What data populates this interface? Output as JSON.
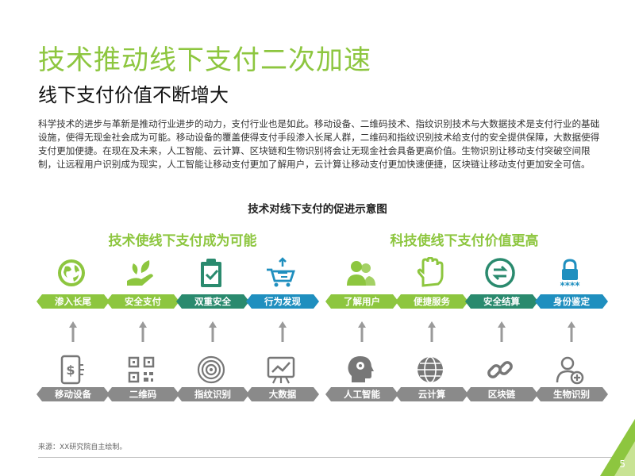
{
  "title": "技术推动线下支付二次加速",
  "subtitle": "线下支付价值不断增大",
  "body_text": "科学技术的进步与革新是推动行业进步的动力，支付行业也是如此。移动设备、二维码技术、指纹识别技术与大数据技术是支付行业的基础设施，使得无现金社会成为可能。移动设备的覆盖使得支付手段渗入长尾人群，二维码和指纹识别技术给支付的安全提供保障，大数据使得支付更加便捷。在现在及未来，人工智能、云计算、区块链和生物识别将会让无现金社会具备更高价值。生物识别让移动支付突破空间限制，让远程用户识别成为现实，人工智能让移动支付更加了解用户，云计算让移动支付更加快速便捷，区块链让移动支付更加安全可信。",
  "diagram_title": "技术对线下支付的促进示意图",
  "left_group": {
    "title": "技术使线下支付成为可能",
    "items": [
      {
        "top_label": "渗入长尾",
        "top_icon": "globe-icon",
        "bottom_label": "移动设备",
        "bottom_icon": "mobile-payment-icon",
        "color": "#8dc63f"
      },
      {
        "top_label": "安全支付",
        "top_icon": "hand-leaf-icon",
        "bottom_label": "二维码",
        "bottom_icon": "qr-code-icon",
        "color": "#8dc63f"
      },
      {
        "top_label": "双重安全",
        "top_icon": "clipboard-check-icon",
        "bottom_label": "指纹识别",
        "bottom_icon": "fingerprint-icon",
        "color": "#2a8a6e"
      },
      {
        "top_label": "行为发现",
        "top_icon": "cart-arrows-icon",
        "bottom_label": "大数据",
        "bottom_icon": "chart-board-icon",
        "color": "#1f8fbf"
      }
    ]
  },
  "right_group": {
    "title": "科技使线下支付价值更高",
    "items": [
      {
        "top_label": "了解用户",
        "top_icon": "users-icon",
        "bottom_label": "人工智能",
        "bottom_icon": "ai-head-icon",
        "color": "#8dc63f"
      },
      {
        "top_label": "便捷服务",
        "top_icon": "glove-icon",
        "bottom_label": "云计算",
        "bottom_icon": "globe-network-icon",
        "color": "#8dc63f"
      },
      {
        "top_label": "安全结算",
        "top_icon": "exchange-icon",
        "bottom_label": "区块链",
        "bottom_icon": "chain-link-icon",
        "color": "#2a8a6e"
      },
      {
        "top_label": "身份鉴定",
        "top_icon": "lock-password-icon",
        "bottom_label": "生物识别",
        "bottom_icon": "user-add-icon",
        "color": "#1f8fbf"
      }
    ]
  },
  "source": "来源：XX研究院自主绘制。",
  "page_number": "5",
  "colors": {
    "accent": "#8dc63f",
    "dark_green": "#2a8a6e",
    "blue": "#1f8fbf",
    "gray": "#8a8a8a"
  }
}
